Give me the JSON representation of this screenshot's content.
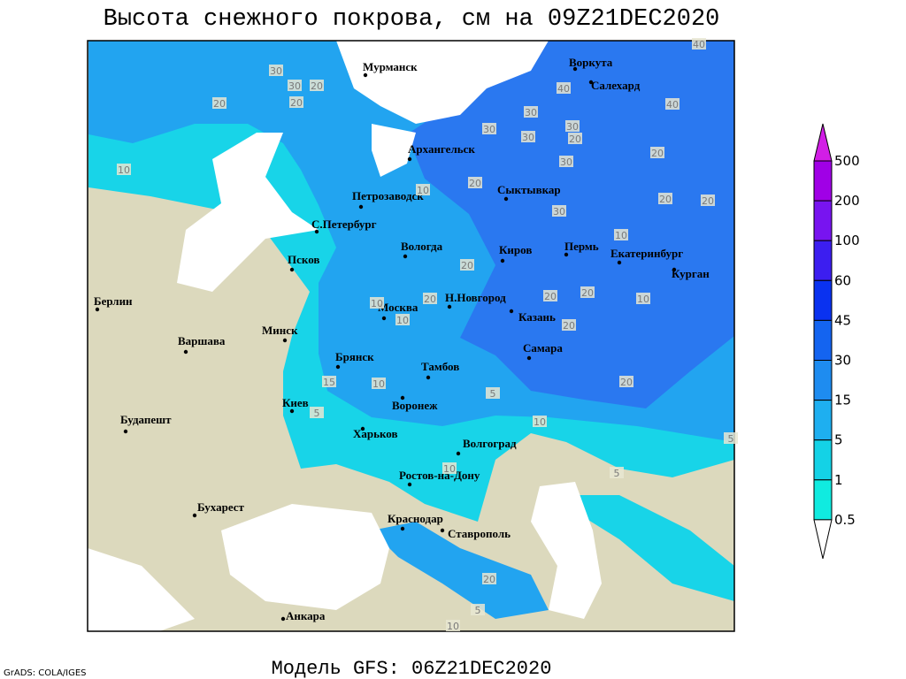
{
  "title": "Высота снежного покрова, см на 09Z21DEC2020",
  "footer": "Модель GFS: 06Z21DEC2020",
  "credit": "GrADS: COLA/IGES",
  "cities": [
    "Мурманск",
    "Воркута",
    "Салехард",
    "Архангельск",
    "Петрозаводск",
    "Сыктывкар",
    "С.Петербург",
    "Вологда",
    "Киров",
    "Пермь",
    "Екатеринбург",
    "Курган",
    "Псков",
    "Берлин",
    "Н.Новгород",
    "Казань",
    "Москва",
    "Минск",
    "Варшава",
    "Самара",
    "Брянск",
    "Тамбов",
    "Киев",
    "Воронеж",
    "Будапешт",
    "Харьков",
    "Волгоград",
    "Ростов-на-Дону",
    "Бухарест",
    "Краснодар",
    "Ставрополь",
    "Анкара"
  ],
  "contour_labels": [
    30,
    30,
    20,
    20,
    20,
    10,
    30,
    30,
    30,
    30,
    40,
    20,
    30,
    20,
    40,
    40,
    20,
    10,
    30,
    20,
    20,
    10,
    20,
    20,
    10,
    20,
    10,
    20,
    20,
    10,
    10,
    5,
    10,
    20,
    5,
    10,
    5,
    20,
    10,
    5,
    15,
    5
  ],
  "legend": {
    "levels": [
      500,
      200,
      100,
      60,
      45,
      30,
      15,
      5,
      1,
      0.5
    ],
    "colors": [
      "#d21ee6",
      "#a000e6",
      "#7814f0",
      "#3c1ef0",
      "#0a32f0",
      "#1464f0",
      "#1e8cf0",
      "#1eaff0",
      "#14d2e6",
      "#10ebe0",
      "#a0f2f8",
      "#ffffff"
    ]
  }
}
